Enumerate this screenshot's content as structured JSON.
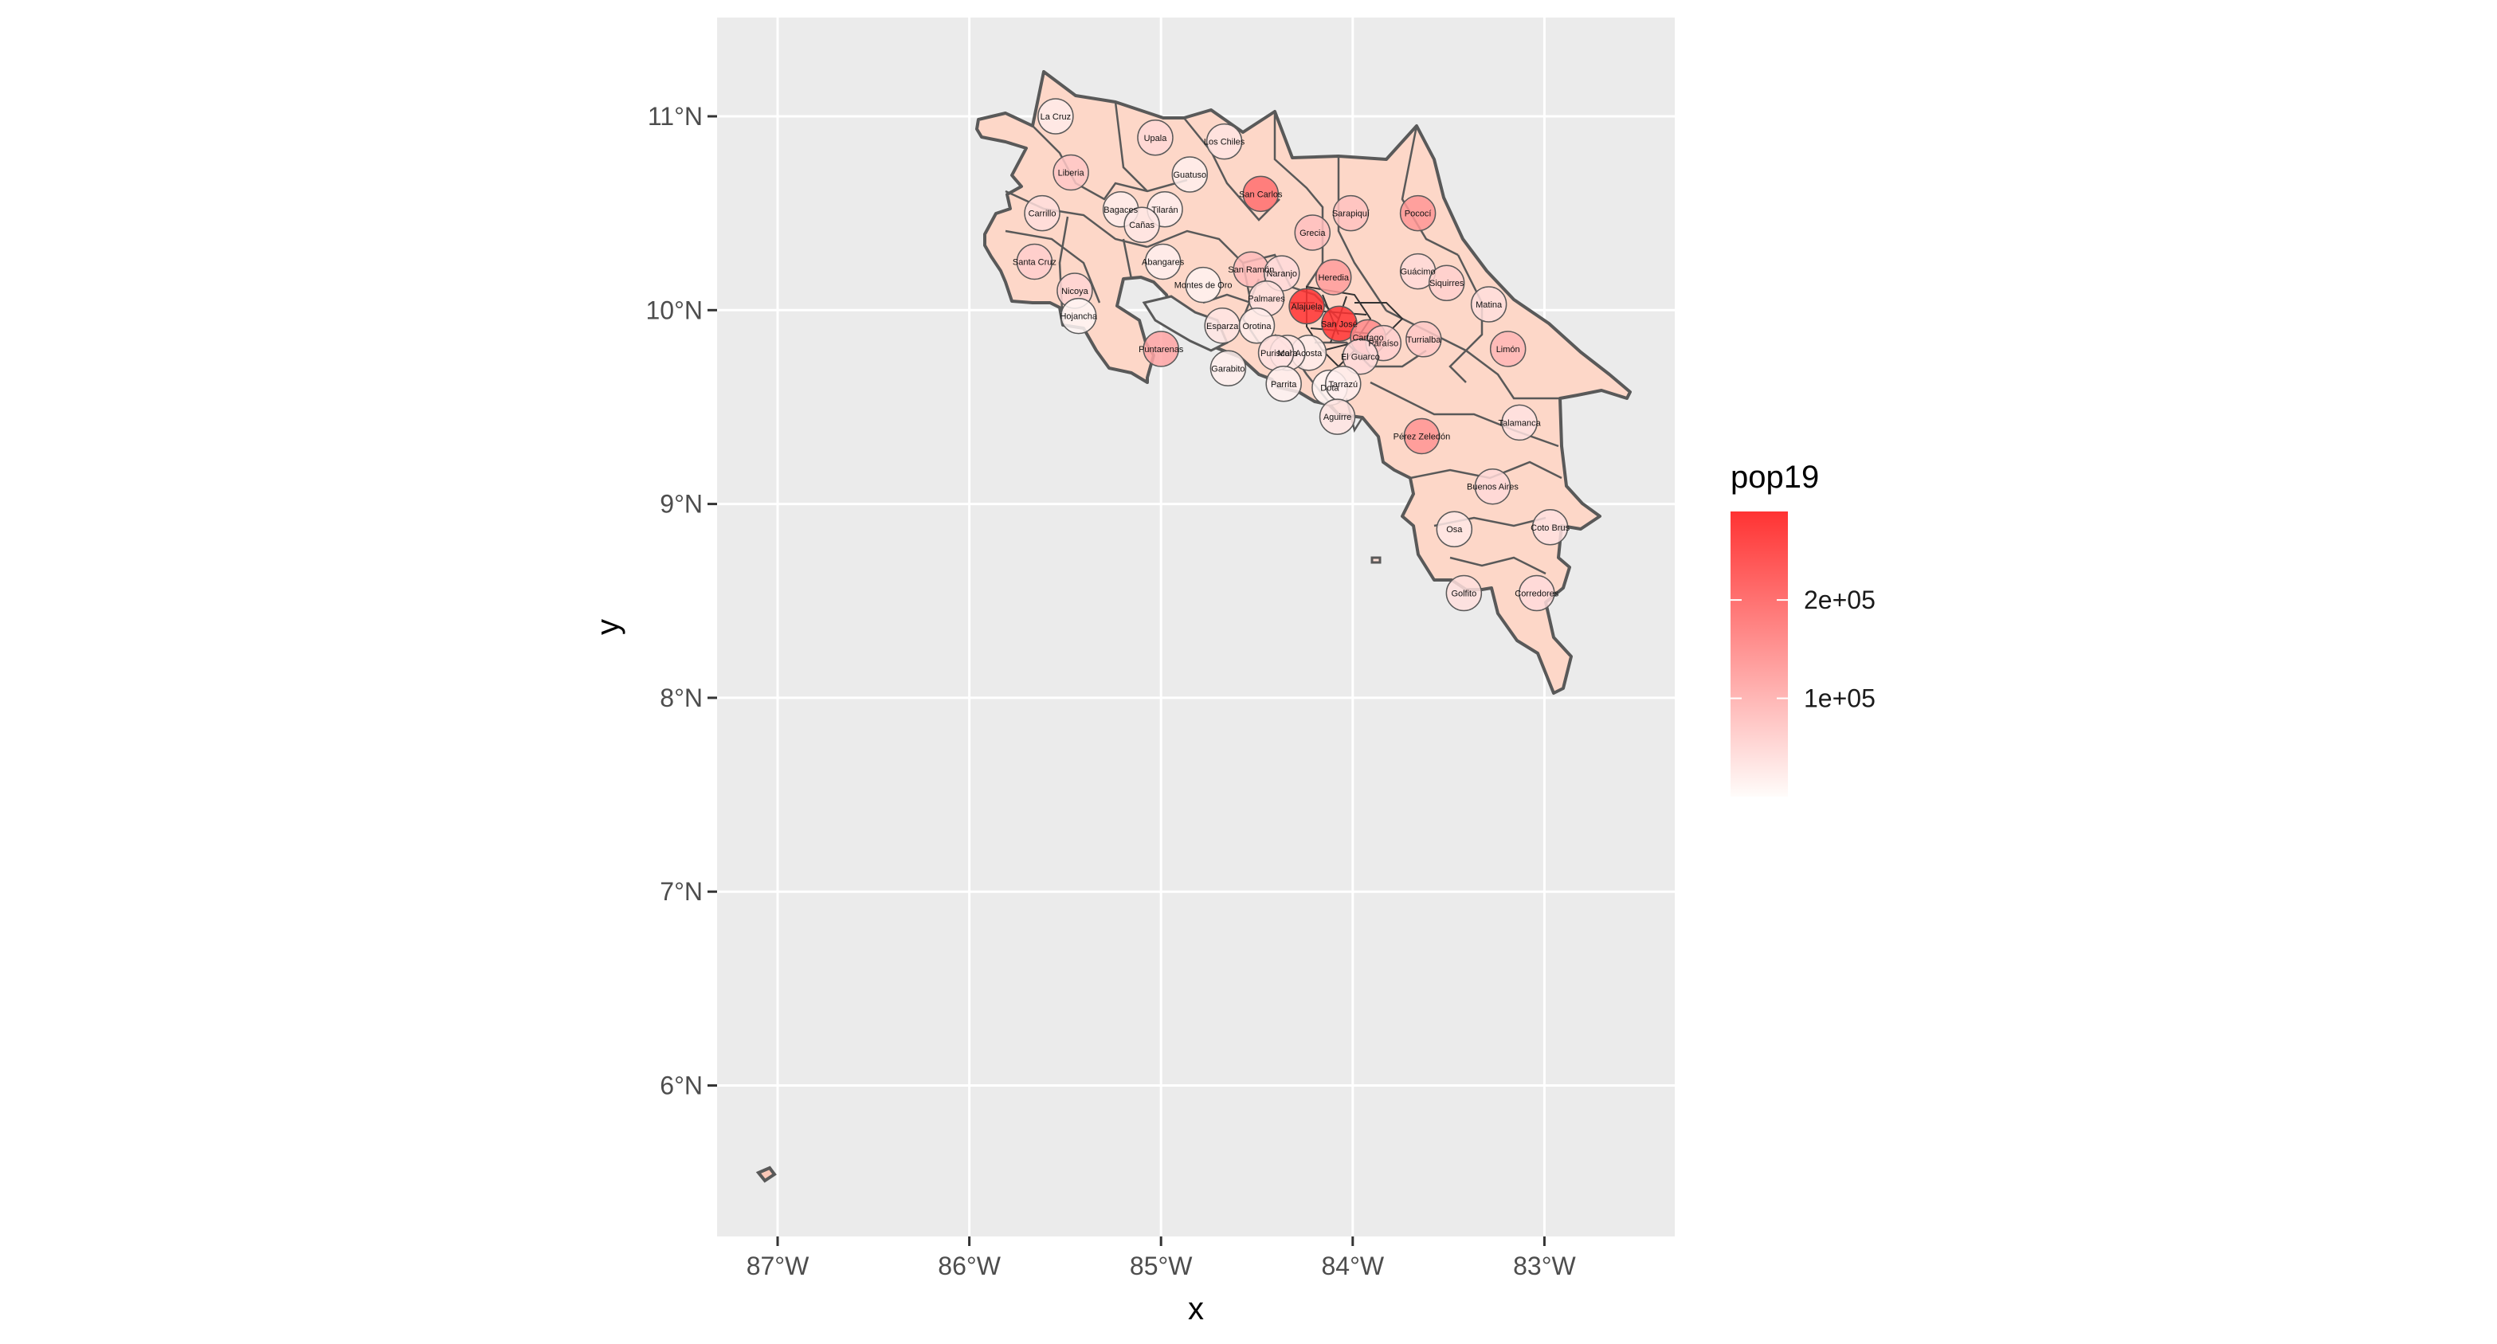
{
  "map": {
    "x_title": "x",
    "y_title": "y",
    "x_ticks": [
      {
        "lon": -87,
        "label": "87°W"
      },
      {
        "lon": -86,
        "label": "86°W"
      },
      {
        "lon": -85,
        "label": "85°W"
      },
      {
        "lon": -84,
        "label": "84°W"
      },
      {
        "lon": -83,
        "label": "83°W"
      }
    ],
    "y_ticks": [
      {
        "lat": 11,
        "label": "11°N"
      },
      {
        "lat": 10,
        "label": "10°N"
      },
      {
        "lat": 9,
        "label": "9°N"
      },
      {
        "lat": 8,
        "label": "8°N"
      },
      {
        "lat": 7,
        "label": "7°N"
      },
      {
        "lat": 6,
        "label": "6°N"
      }
    ],
    "lon_range": [
      -87.3,
      -82.3
    ],
    "lat_range": [
      5.3,
      11.5
    ],
    "panel_background": "#ebebeb",
    "gridline_color": "#ffffff",
    "border_color": "#595959"
  },
  "legend": {
    "title": "pop19",
    "scale_min": 0,
    "scale_max": 290000,
    "low_color": "#fffcfa",
    "high_color": "#ff3333",
    "labels": [
      {
        "value": 100000,
        "label": "1e+05"
      },
      {
        "value": 200000,
        "label": "2e+05"
      }
    ]
  },
  "regions": [
    {
      "name": "La Cruz",
      "lon": -85.55,
      "lat": 11.0,
      "pop": 25000
    },
    {
      "name": "Upala",
      "lon": -85.03,
      "lat": 10.89,
      "pop": 52000
    },
    {
      "name": "Los Chiles",
      "lon": -84.67,
      "lat": 10.87,
      "pop": 35000
    },
    {
      "name": "Guatuso",
      "lon": -84.85,
      "lat": 10.7,
      "pop": 20000
    },
    {
      "name": "Liberia",
      "lon": -85.47,
      "lat": 10.71,
      "pop": 76000
    },
    {
      "name": "San Carlos",
      "lon": -84.48,
      "lat": 10.6,
      "pop": 203000
    },
    {
      "name": "Sarapiquí",
      "lon": -84.01,
      "lat": 10.5,
      "pop": 84000
    },
    {
      "name": "Pococí",
      "lon": -83.66,
      "lat": 10.5,
      "pop": 147000
    },
    {
      "name": "Bagaces",
      "lon": -85.21,
      "lat": 10.52,
      "pop": 22000
    },
    {
      "name": "Tilarán",
      "lon": -84.98,
      "lat": 10.52,
      "pop": 21000
    },
    {
      "name": "Carrillo",
      "lon": -85.62,
      "lat": 10.5,
      "pop": 43000
    },
    {
      "name": "Cañas",
      "lon": -85.1,
      "lat": 10.44,
      "pop": 31000
    },
    {
      "name": "Grecia",
      "lon": -84.21,
      "lat": 10.4,
      "pop": 87000
    },
    {
      "name": "Abangares",
      "lon": -84.99,
      "lat": 10.25,
      "pop": 19000
    },
    {
      "name": "Santa Cruz",
      "lon": -85.66,
      "lat": 10.25,
      "pop": 66000
    },
    {
      "name": "Guácimo",
      "lon": -83.66,
      "lat": 10.2,
      "pop": 49000
    },
    {
      "name": "San Ramón",
      "lon": -84.53,
      "lat": 10.21,
      "pop": 92000
    },
    {
      "name": "Naranjo",
      "lon": -84.37,
      "lat": 10.19,
      "pop": 47000
    },
    {
      "name": "Siquirres",
      "lon": -83.51,
      "lat": 10.14,
      "pop": 64000
    },
    {
      "name": "Montes de Oro",
      "lon": -84.78,
      "lat": 10.13,
      "pop": 14000
    },
    {
      "name": "Heredia",
      "lon": -84.1,
      "lat": 10.17,
      "pop": 139000
    },
    {
      "name": "Nicoya",
      "lon": -85.45,
      "lat": 10.1,
      "pop": 56000
    },
    {
      "name": "Palmares",
      "lon": -84.45,
      "lat": 10.06,
      "pop": 41000
    },
    {
      "name": "Matina",
      "lon": -83.29,
      "lat": 10.03,
      "pop": 43000
    },
    {
      "name": "Alajuela",
      "lon": -84.24,
      "lat": 10.02,
      "pop": 294000
    },
    {
      "name": "San José",
      "lon": -84.07,
      "lat": 9.93,
      "pop": 342000
    },
    {
      "name": "Hojancha",
      "lon": -85.43,
      "lat": 9.97,
      "pop": 8000
    },
    {
      "name": "Puntarenas",
      "lon": -85.0,
      "lat": 9.8,
      "pop": 125000
    },
    {
      "name": "Turrialba",
      "lon": -83.63,
      "lat": 9.85,
      "pop": 74000
    },
    {
      "name": "Esparza",
      "lon": -84.68,
      "lat": 9.92,
      "pop": 33000
    },
    {
      "name": "Orotina",
      "lon": -84.5,
      "lat": 9.92,
      "pop": 22000
    },
    {
      "name": "Cartago",
      "lon": -83.92,
      "lat": 9.86,
      "pop": 164000
    },
    {
      "name": "Paraíso",
      "lon": -83.84,
      "lat": 9.83,
      "pop": 63000
    },
    {
      "name": "Limón",
      "lon": -83.19,
      "lat": 9.8,
      "pop": 101000
    },
    {
      "name": "Garabito",
      "lon": -84.65,
      "lat": 9.7,
      "pop": 20000
    },
    {
      "name": "Acosta",
      "lon": -84.23,
      "lat": 9.78,
      "pop": 22000
    },
    {
      "name": "Mora",
      "lon": -84.34,
      "lat": 9.78,
      "pop": 30000
    },
    {
      "name": "Puriscal",
      "lon": -84.4,
      "lat": 9.78,
      "pop": 38000
    },
    {
      "name": "El Guarco",
      "lon": -83.96,
      "lat": 9.76,
      "pop": 47000
    },
    {
      "name": "Dota",
      "lon": -84.12,
      "lat": 9.6,
      "pop": 8000
    },
    {
      "name": "Tarrazú",
      "lon": -84.05,
      "lat": 9.62,
      "pop": 19000
    },
    {
      "name": "Parrita",
      "lon": -84.36,
      "lat": 9.62,
      "pop": 18000
    },
    {
      "name": "Aguirre",
      "lon": -84.08,
      "lat": 9.45,
      "pop": 35000
    },
    {
      "name": "Pérez Zeledón",
      "lon": -83.64,
      "lat": 9.35,
      "pop": 150000
    },
    {
      "name": "Talamanca",
      "lon": -83.13,
      "lat": 9.42,
      "pop": 38000
    },
    {
      "name": "Buenos Aires",
      "lon": -83.27,
      "lat": 9.09,
      "pop": 50000
    },
    {
      "name": "Osa",
      "lon": -83.47,
      "lat": 8.87,
      "pop": 31000
    },
    {
      "name": "Coto Brus",
      "lon": -82.97,
      "lat": 8.88,
      "pop": 39000
    },
    {
      "name": "Golfito",
      "lon": -83.42,
      "lat": 8.54,
      "pop": 42000
    },
    {
      "name": "Corredores",
      "lon": -83.04,
      "lat": 8.54,
      "pop": 47000
    }
  ]
}
